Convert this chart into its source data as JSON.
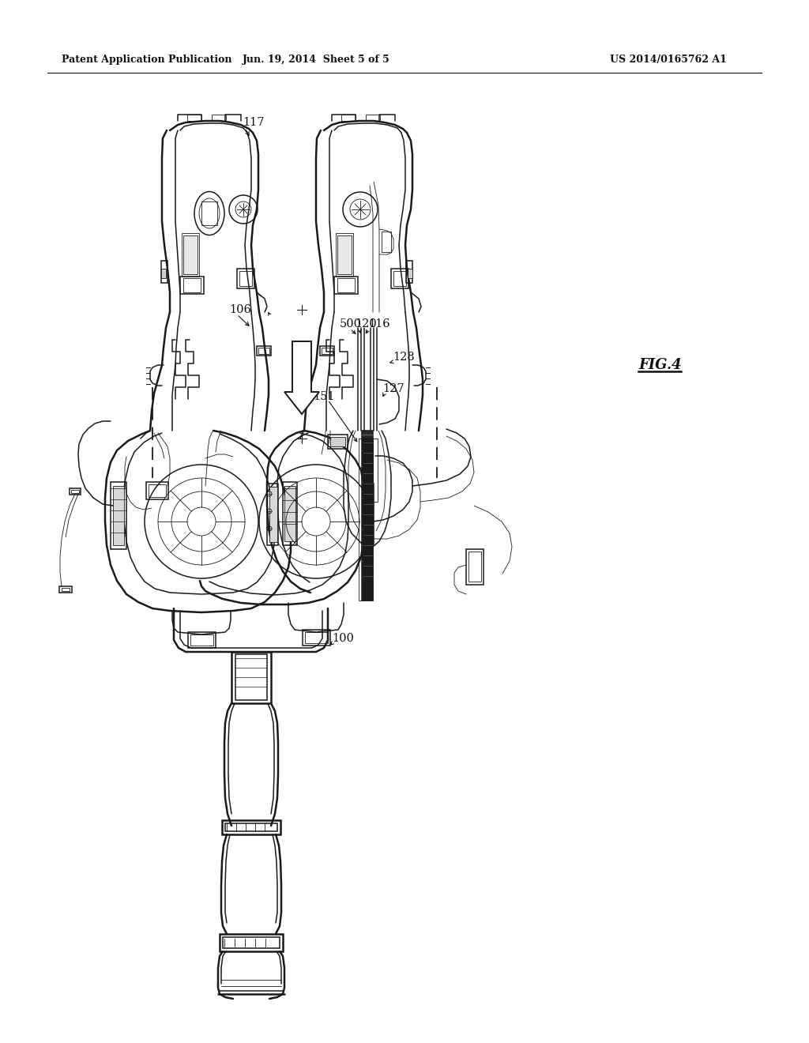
{
  "background_color": "#ffffff",
  "header_left": "Patent Application Publication",
  "header_center": "Jun. 19, 2014  Sheet 5 of 5",
  "header_right": "US 2014/0165762 A1",
  "figure_label": "FIG.4",
  "text_color": "#111111",
  "line_color": "#1a1a1a",
  "lw_thick": 1.8,
  "lw_main": 1.1,
  "lw_thin": 0.6
}
